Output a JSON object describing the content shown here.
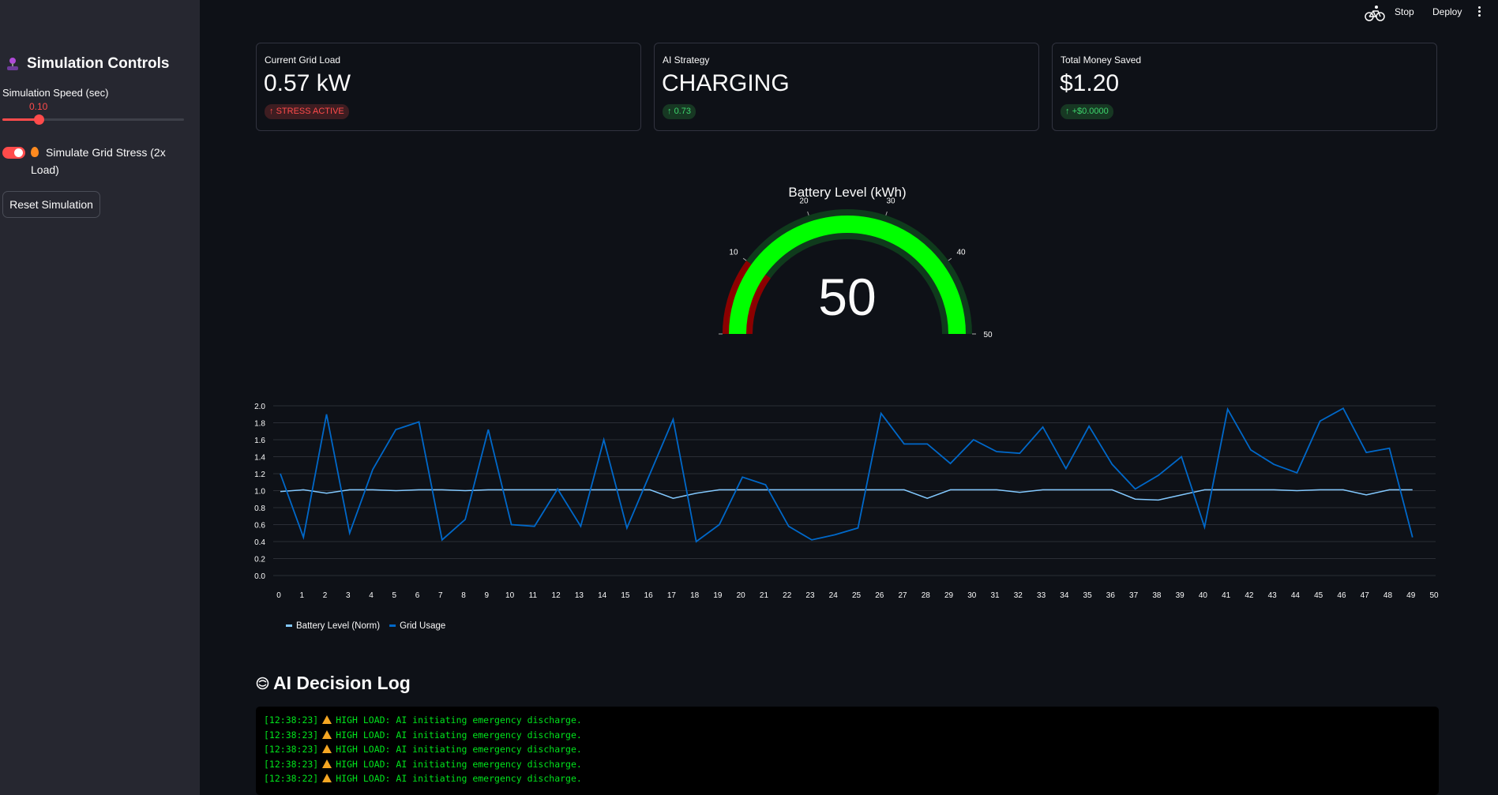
{
  "header": {
    "stop_label": "Stop",
    "deploy_label": "Deploy",
    "run_icon": "running-cyclist-icon",
    "menu_icon": "vertical-ellipsis-icon"
  },
  "sidebar": {
    "title": "Simulation Controls",
    "title_icon": "joystick-icon",
    "speed_label": "Simulation Speed (sec)",
    "speed_value": "0.10",
    "speed_fraction": 0.2,
    "stress_label": "Simulate Grid Stress (2x Load)",
    "stress_icon": "fire-icon",
    "stress_enabled": true,
    "reset_label": "Reset Simulation"
  },
  "metrics": [
    {
      "label": "Current Grid Load",
      "value": "0.57 kW",
      "delta": "STRESS ACTIVE",
      "delta_color": "#ff4b4b"
    },
    {
      "label": "AI Strategy",
      "value": "CHARGING",
      "delta": "0.73",
      "delta_color": "#3dd56d"
    },
    {
      "label": "Total Money Saved",
      "value": "$1.20",
      "delta": "+$0.0000",
      "delta_color": "#3dd56d"
    }
  ],
  "gauge": {
    "title": "Battery Level (kWh)",
    "value": 50,
    "value_text": "50",
    "min": 0,
    "max": 50,
    "ticks": [
      "0",
      "10",
      "20",
      "30",
      "40",
      "50"
    ],
    "low_band": [
      0,
      10
    ],
    "low_color": "#8b0000",
    "bar_color": "#00ff00",
    "band_color": "#0f3b1c"
  },
  "chart_data": {
    "type": "line",
    "x": [
      0,
      1,
      2,
      3,
      4,
      5,
      6,
      7,
      8,
      9,
      10,
      11,
      12,
      13,
      14,
      15,
      16,
      17,
      18,
      19,
      20,
      21,
      22,
      23,
      24,
      25,
      26,
      27,
      28,
      29,
      30,
      31,
      32,
      33,
      34,
      35,
      36,
      37,
      38,
      39,
      40,
      41,
      42,
      43,
      44,
      45,
      46,
      47,
      48,
      49
    ],
    "x_ticks": [
      "0",
      "1",
      "2",
      "3",
      "4",
      "5",
      "6",
      "7",
      "8",
      "9",
      "10",
      "11",
      "12",
      "13",
      "14",
      "15",
      "16",
      "17",
      "18",
      "19",
      "20",
      "21",
      "22",
      "23",
      "24",
      "25",
      "26",
      "27",
      "28",
      "29",
      "30",
      "31",
      "32",
      "33",
      "34",
      "35",
      "36",
      "37",
      "38",
      "39",
      "40",
      "41",
      "42",
      "43",
      "44",
      "45",
      "46",
      "47",
      "48",
      "49",
      "50"
    ],
    "y_ticks": [
      "2.0",
      "1.8",
      "1.6",
      "1.4",
      "1.2",
      "1.0",
      "0.8",
      "0.6",
      "0.4",
      "0.2",
      "0.0"
    ],
    "xlim": [
      0,
      50
    ],
    "ylim": [
      0,
      2.0
    ],
    "grid": true,
    "legend_position": "bottom-left",
    "series": [
      {
        "name": "Battery Level (Norm)",
        "color": "#83c9ff",
        "values": [
          0.99,
          1.01,
          0.97,
          1.01,
          1.01,
          1.0,
          1.01,
          1.01,
          1.0,
          1.01,
          1.01,
          1.01,
          1.01,
          1.01,
          1.01,
          1.01,
          1.01,
          0.91,
          0.97,
          1.01,
          1.01,
          1.01,
          1.01,
          1.01,
          1.01,
          1.01,
          1.01,
          1.01,
          0.91,
          1.01,
          1.01,
          1.01,
          0.98,
          1.01,
          1.01,
          1.01,
          1.01,
          0.9,
          0.89,
          0.95,
          1.01,
          1.01,
          1.01,
          1.01,
          1.0,
          1.01,
          1.01,
          0.95,
          1.01,
          1.01
        ]
      },
      {
        "name": "Grid Usage",
        "color": "#0068c9",
        "values": [
          1.2,
          0.45,
          1.9,
          0.5,
          1.25,
          1.72,
          1.81,
          0.42,
          0.66,
          1.72,
          0.6,
          0.58,
          1.02,
          0.58,
          1.6,
          0.56,
          1.2,
          1.84,
          0.4,
          0.6,
          1.16,
          1.07,
          0.58,
          0.42,
          0.48,
          0.56,
          1.91,
          1.55,
          1.55,
          1.32,
          1.6,
          1.46,
          1.44,
          1.75,
          1.26,
          1.76,
          1.31,
          1.02,
          1.18,
          1.4,
          0.57,
          1.96,
          1.48,
          1.31,
          1.21,
          1.82,
          1.97,
          1.45,
          1.5,
          0.45
        ]
      }
    ]
  },
  "log": {
    "title": "AI Decision Log",
    "title_icon": "brain-icon",
    "lines": [
      {
        "time": "[12:38:23]",
        "text": "HIGH LOAD: AI initiating emergency discharge."
      },
      {
        "time": "[12:38:23]",
        "text": "HIGH LOAD: AI initiating emergency discharge."
      },
      {
        "time": "[12:38:23]",
        "text": "HIGH LOAD: AI initiating emergency discharge."
      },
      {
        "time": "[12:38:23]",
        "text": "HIGH LOAD: AI initiating emergency discharge."
      },
      {
        "time": "[12:38:22]",
        "text": "HIGH LOAD: AI initiating emergency discharge."
      }
    ]
  }
}
